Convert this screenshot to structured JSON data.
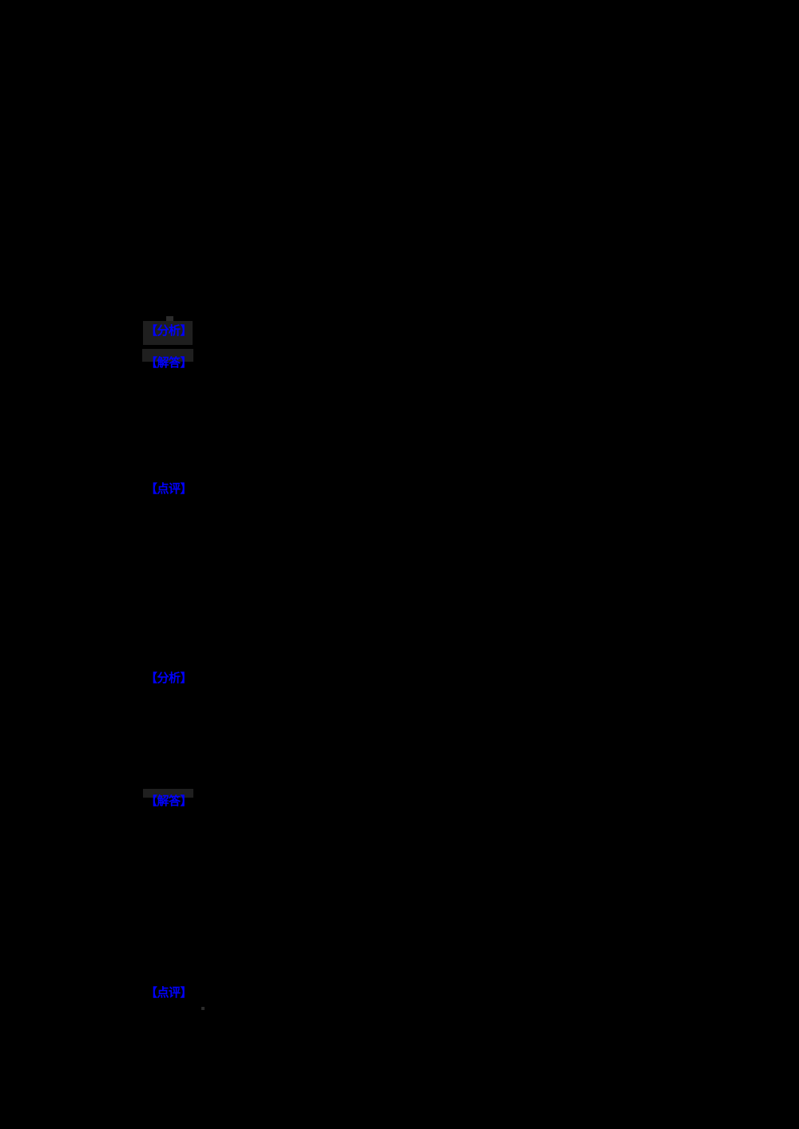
{
  "page": {
    "background_color": "#000000",
    "link_color": "#0000ff",
    "highlight_box_color": "#1f1f1f"
  },
  "links": [
    {
      "label": "【分析】"
    },
    {
      "label": "【解答】"
    },
    {
      "label": "【点评】"
    },
    {
      "label": "【分析】"
    },
    {
      "label": "【解答】"
    },
    {
      "label": "【点评】"
    }
  ]
}
